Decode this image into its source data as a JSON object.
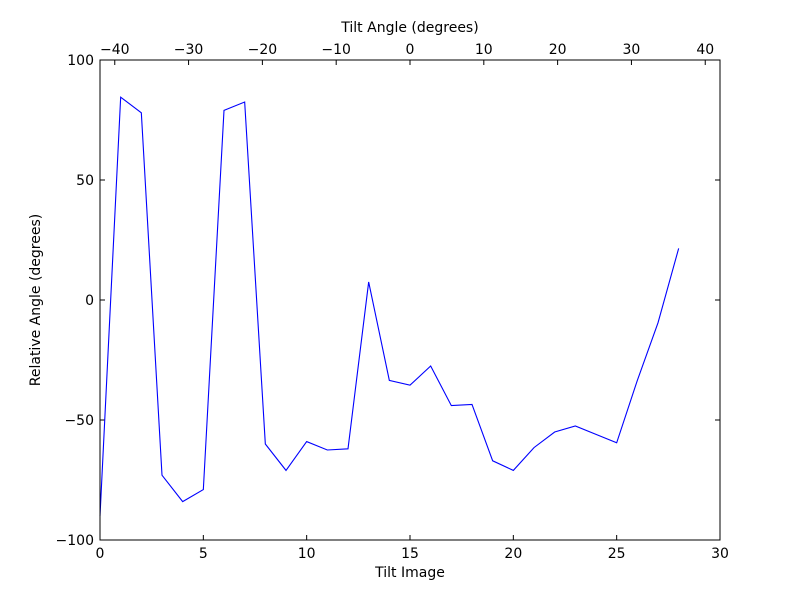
{
  "chart_data": {
    "type": "line",
    "xlabel": "Tilt Image",
    "ylabel": "Relative Angle (degrees)",
    "top_xlabel": "Tilt Angle (degrees)",
    "xlim": [
      0,
      30
    ],
    "ylim": [
      -100,
      100
    ],
    "top_xlim": [
      -42,
      42
    ],
    "grid": false,
    "x_ticks": [
      0,
      5,
      10,
      15,
      20,
      25,
      30
    ],
    "y_ticks": [
      -100,
      -50,
      0,
      50,
      100
    ],
    "top_x_ticks": [
      -40,
      -30,
      -20,
      -10,
      0,
      10,
      20,
      30,
      40
    ],
    "x_tick_labels": [
      "0",
      "5",
      "10",
      "15",
      "20",
      "25",
      "30"
    ],
    "y_tick_labels": [
      "−100",
      "−50",
      "0",
      "50",
      "100"
    ],
    "top_x_tick_labels": [
      "−40",
      "−30",
      "−20",
      "−10",
      "0",
      "10",
      "20",
      "30",
      "40"
    ],
    "series": [
      {
        "color": "#0000ff",
        "x": [
          0,
          1,
          2,
          3,
          4,
          5,
          6,
          7,
          8,
          9,
          10,
          11,
          12,
          13,
          14,
          15,
          16,
          17,
          18,
          19,
          20,
          21,
          22,
          23,
          24,
          25,
          26,
          27,
          28
        ],
        "y": [
          -90,
          84.5,
          78,
          -73,
          -84,
          -79,
          79,
          82.5,
          -60,
          -71,
          -59,
          -62.5,
          -62,
          7.5,
          -33.5,
          -35.5,
          -27.5,
          -44,
          -43.5,
          -67,
          -71,
          -61.5,
          -55,
          -52.5,
          -56,
          -59.5,
          -33.5,
          -9.5,
          21.5
        ]
      }
    ]
  }
}
